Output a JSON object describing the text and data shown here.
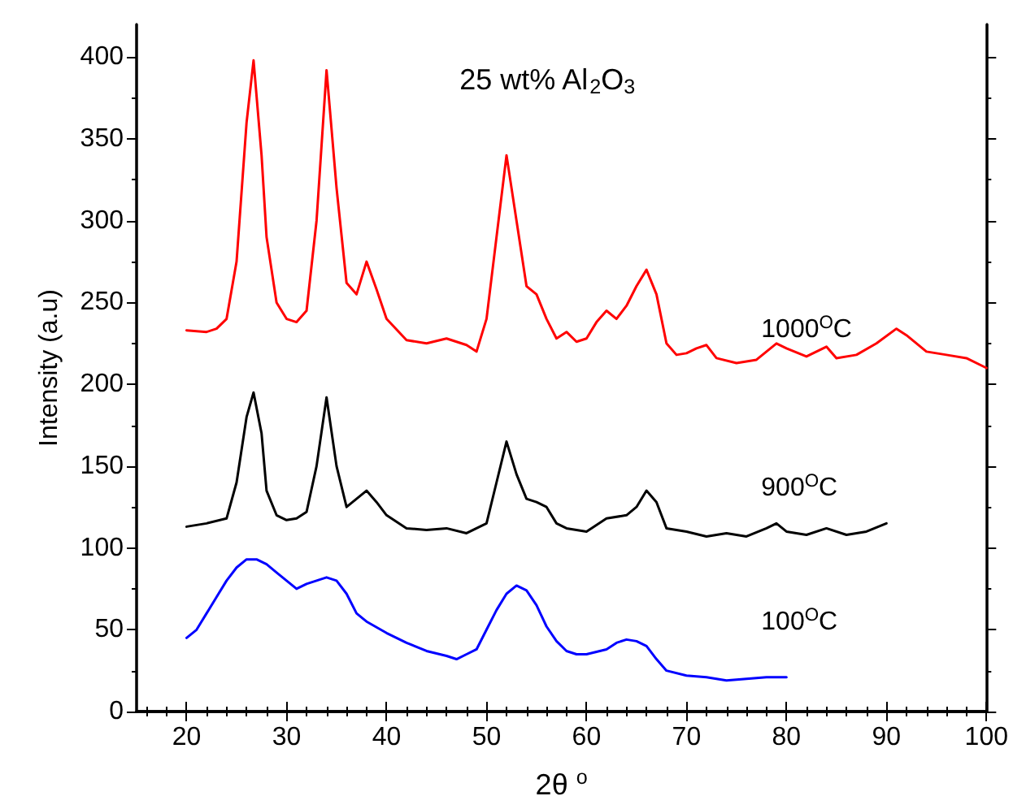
{
  "chart_data": {
    "type": "line",
    "xlabel": "2θ $^{o}$",
    "ylabel": "Intensity (a.u)",
    "annotations": [
      "25 wt% Al$_{2}$O$_{3}$",
      "1000$^{O}$C",
      "900$^{O}$C",
      "100$^{O}$C"
    ],
    "xlim": [
      15,
      100
    ],
    "xticks": [
      20,
      30,
      40,
      50,
      60,
      70,
      80,
      90,
      100
    ],
    "ylim": [
      0,
      420
    ],
    "yticks": [
      0,
      50,
      100,
      150,
      200,
      250,
      300,
      350,
      400
    ],
    "grid": false,
    "marker": "none",
    "line_style": "solid",
    "series": [
      {
        "color": "#ff0000",
        "x": [
          20,
          22,
          23,
          24,
          25,
          26,
          26.7,
          27.5,
          28,
          29,
          30,
          31,
          32,
          33,
          34,
          35,
          36,
          37,
          38,
          39,
          40,
          42,
          44,
          46,
          48,
          49,
          50,
          51,
          52,
          53,
          54,
          55,
          56,
          57,
          58,
          59,
          60,
          61,
          62,
          63,
          64,
          65,
          66,
          67,
          68,
          69,
          70,
          71,
          72,
          73,
          75,
          77,
          79,
          80,
          82,
          84,
          85,
          87,
          89,
          91,
          92,
          94,
          96,
          98,
          100
        ],
        "values": [
          233,
          232,
          234,
          240,
          275,
          360,
          398,
          340,
          290,
          250,
          240,
          238,
          245,
          300,
          392,
          320,
          262,
          255,
          275,
          258,
          240,
          227,
          225,
          228,
          224,
          220,
          240,
          290,
          340,
          300,
          260,
          255,
          240,
          228,
          232,
          226,
          228,
          238,
          245,
          240,
          248,
          260,
          270,
          255,
          225,
          218,
          219,
          222,
          224,
          216,
          213,
          215,
          225,
          222,
          217,
          223,
          216,
          218,
          225,
          234,
          230,
          220,
          218,
          216,
          210
        ]
      },
      {
        "color": "#000000",
        "x": [
          20,
          22,
          24,
          25,
          26,
          26.7,
          27.5,
          28,
          29,
          30,
          31,
          32,
          33,
          34,
          35,
          36,
          37,
          38,
          39,
          40,
          42,
          44,
          46,
          48,
          50,
          51,
          52,
          53,
          54,
          55,
          56,
          57,
          58,
          60,
          62,
          64,
          65,
          66,
          67,
          68,
          70,
          72,
          74,
          76,
          78,
          79,
          80,
          82,
          84,
          86,
          88,
          90
        ],
        "values": [
          113,
          115,
          118,
          140,
          180,
          195,
          170,
          135,
          120,
          117,
          118,
          122,
          150,
          192,
          150,
          125,
          130,
          135,
          128,
          120,
          112,
          111,
          112,
          109,
          115,
          140,
          165,
          145,
          130,
          128,
          125,
          115,
          112,
          110,
          118,
          120,
          125,
          135,
          128,
          112,
          110,
          107,
          109,
          107,
          112,
          115,
          110,
          108,
          112,
          108,
          110,
          115
        ]
      },
      {
        "color": "#0000ff",
        "x": [
          20,
          21,
          22,
          23,
          24,
          25,
          26,
          27,
          28,
          29,
          30,
          31,
          32,
          33,
          34,
          35,
          36,
          37,
          38,
          40,
          42,
          44,
          46,
          47,
          48,
          49,
          50,
          51,
          52,
          53,
          54,
          55,
          56,
          57,
          58,
          59,
          60,
          62,
          63,
          64,
          65,
          66,
          67,
          68,
          70,
          72,
          74,
          76,
          78,
          80
        ],
        "values": [
          45,
          50,
          60,
          70,
          80,
          88,
          93,
          93,
          90,
          85,
          80,
          75,
          78,
          80,
          82,
          80,
          72,
          60,
          55,
          48,
          42,
          37,
          34,
          32,
          35,
          38,
          50,
          62,
          72,
          77,
          74,
          65,
          52,
          43,
          37,
          35,
          35,
          38,
          42,
          44,
          43,
          40,
          32,
          25,
          22,
          21,
          19,
          20,
          21,
          21
        ]
      }
    ]
  }
}
